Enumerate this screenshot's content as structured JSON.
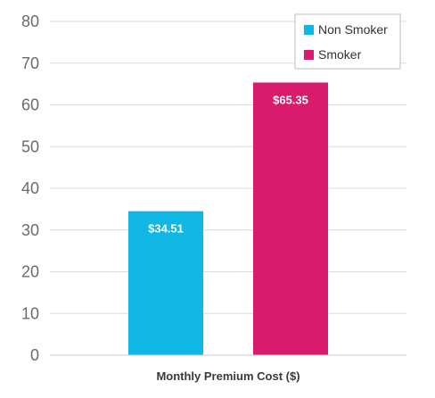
{
  "chart_data": {
    "type": "bar",
    "categories": [
      "Non Smoker",
      "Smoker"
    ],
    "values": [
      34.51,
      65.35
    ],
    "value_labels": [
      "$34.51",
      "$65.35"
    ],
    "colors": [
      "#10b6e4",
      "#d81b6d"
    ],
    "xlabel": "Monthly Premium Cost ($)",
    "ylabel": "",
    "ylim": [
      0,
      80
    ],
    "yticks": [
      0,
      10,
      20,
      30,
      40,
      50,
      60,
      70,
      80
    ],
    "grid": true,
    "legend": {
      "position": "top-right",
      "entries": [
        {
          "label": "Non Smoker",
          "color": "#10b6e4"
        },
        {
          "label": "Smoker",
          "color": "#d81b6d"
        }
      ]
    }
  }
}
